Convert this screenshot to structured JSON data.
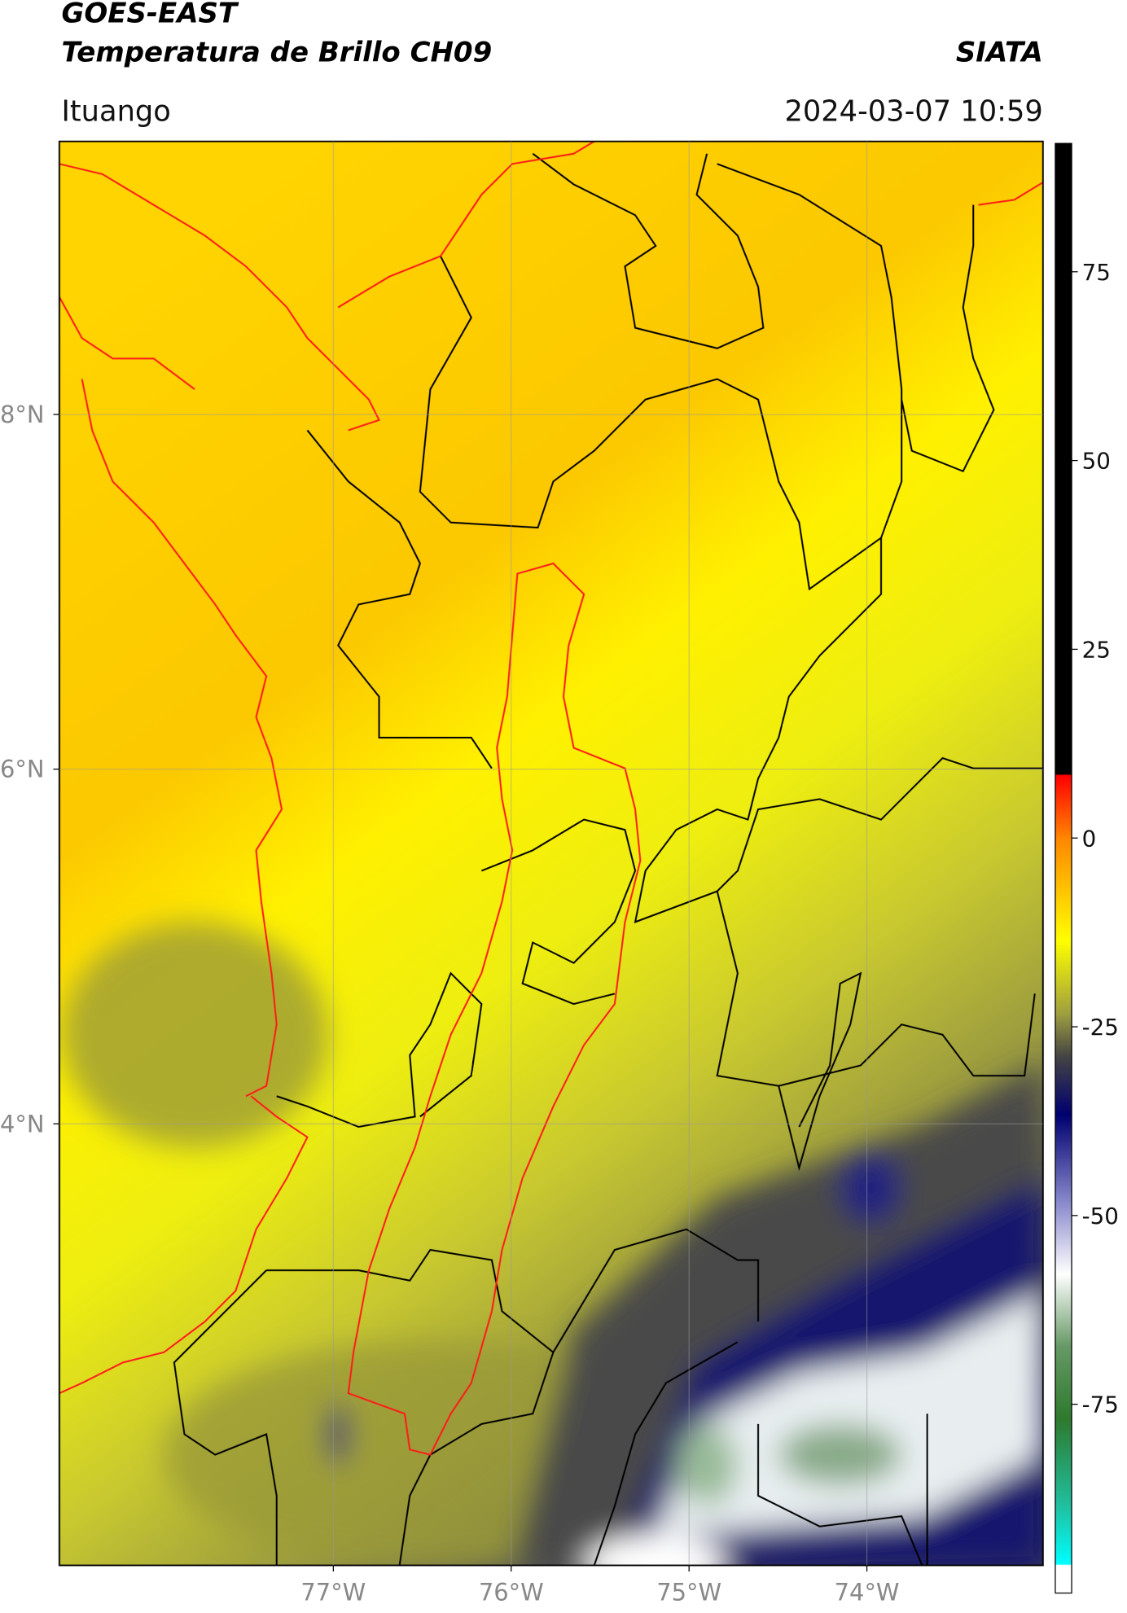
{
  "header": {
    "title": "GOES-EAST",
    "subtitle": "Temperatura de Brillo CH09",
    "agency": "SIATA",
    "location": "Ituango",
    "datetime": "2024-03-07 10:59"
  },
  "map": {
    "xlim": [
      -78.54,
      -73.01
    ],
    "ylim": [
      1.51,
      9.54
    ],
    "xticks": [
      {
        "value": -77,
        "label": "77°W"
      },
      {
        "value": -76,
        "label": "76°W"
      },
      {
        "value": -75,
        "label": "75°W"
      },
      {
        "value": -74,
        "label": "74°W"
      }
    ],
    "yticks": [
      {
        "value": 8,
        "label": "8°N"
      },
      {
        "value": 6,
        "label": "6°N"
      },
      {
        "value": 4,
        "label": "4°N"
      }
    ],
    "grid": true
  },
  "colorbar": {
    "lim": [
      -100,
      92
    ],
    "ticks": [
      75,
      50,
      25,
      0,
      -25,
      -50,
      -75
    ]
  }
}
